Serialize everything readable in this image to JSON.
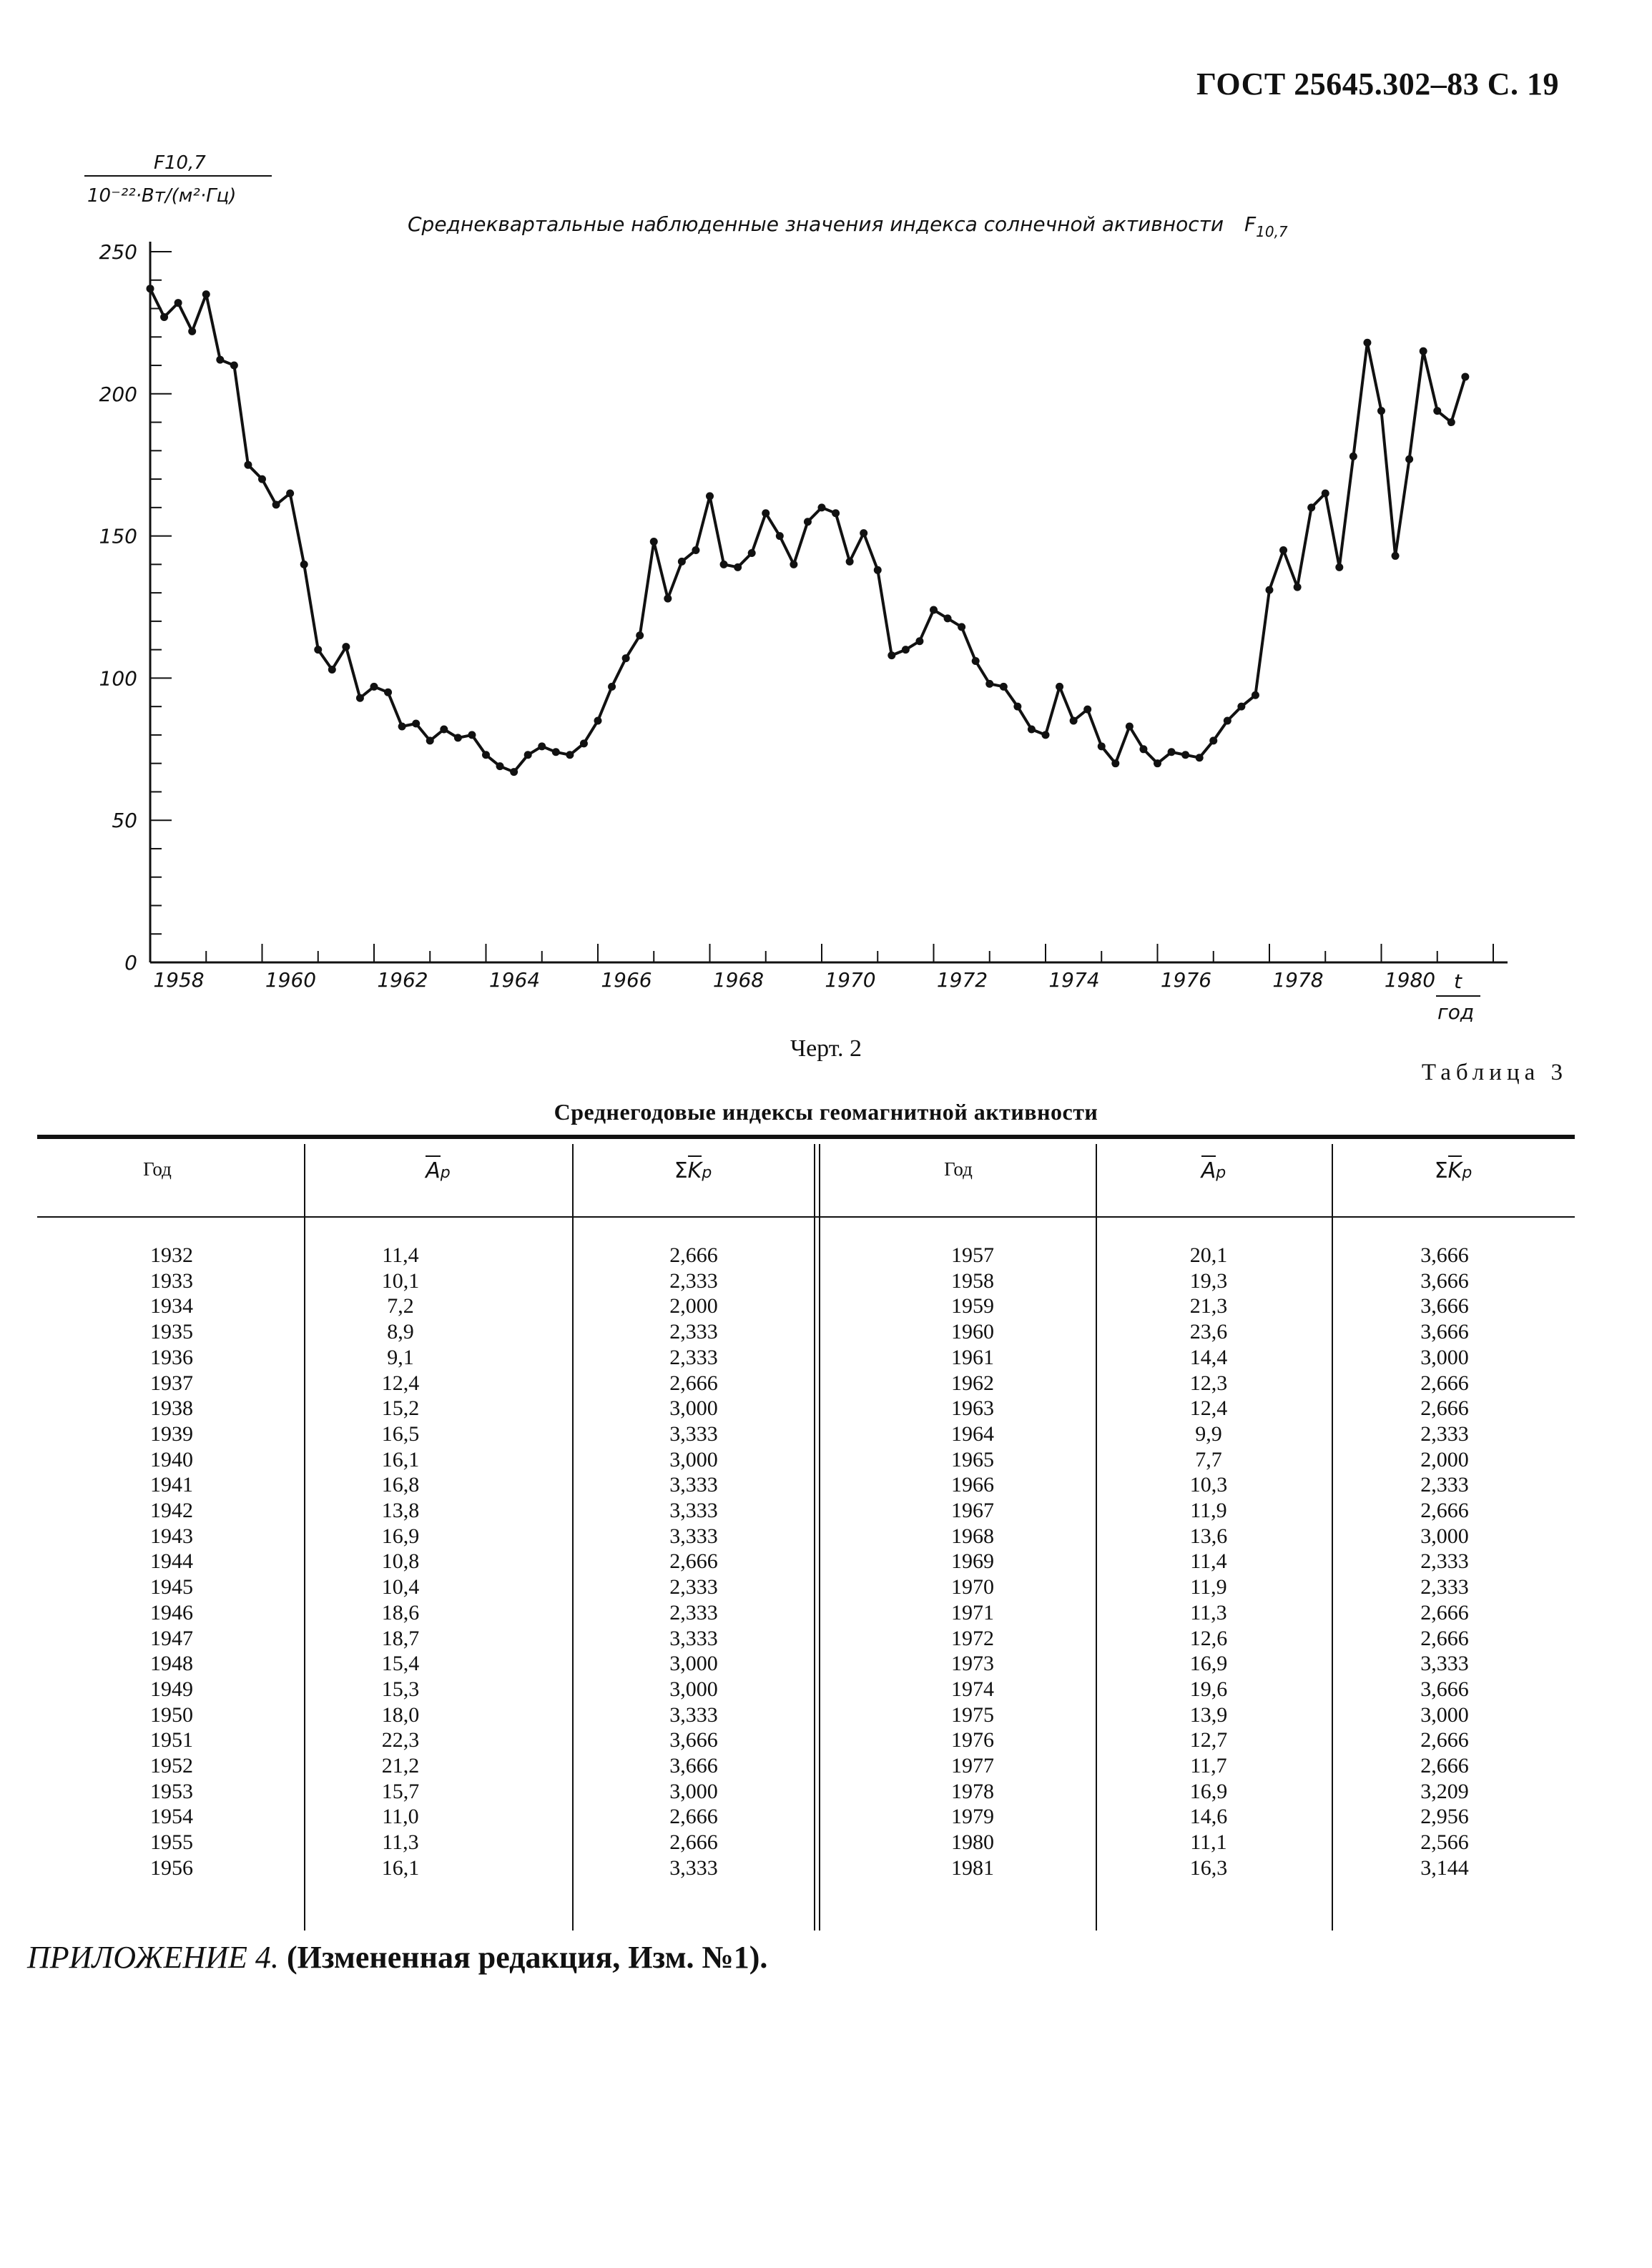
{
  "header": {
    "standard": "ГОСТ 25645.302–83 С. 19"
  },
  "figure": {
    "caption": "Черт. 2",
    "title": "Среднеквартальные наблюденные значения индекса солнечной активности",
    "title_symbol": "F",
    "title_symbol_sub": "10,7"
  },
  "chart_data": {
    "type": "line",
    "title": "Среднеквартальные наблюденные значения индекса солнечной активности F10,7",
    "ylabel_top": "F10,7",
    "ylabel_bottom": "10⁻²²·Вт/(м²·Гц)",
    "xlabel_top": "t",
    "xlabel_bottom": "год",
    "ylim": [
      0,
      250
    ],
    "xlim": [
      1958,
      1982
    ],
    "y_ticks": [
      "0",
      "50",
      "100",
      "150",
      "200",
      "250"
    ],
    "x_ticks": [
      "1958",
      "1960",
      "1962",
      "1964",
      "1966",
      "1968",
      "1970",
      "1972",
      "1974",
      "1976",
      "1978",
      "1980"
    ],
    "series": [
      {
        "values": [
          [
            1958.0,
            237
          ],
          [
            1958.25,
            227
          ],
          [
            1958.5,
            232
          ],
          [
            1958.75,
            222
          ],
          [
            1959.0,
            235
          ],
          [
            1959.25,
            212
          ],
          [
            1959.5,
            210
          ],
          [
            1959.75,
            175
          ],
          [
            1960.0,
            170
          ],
          [
            1960.25,
            161
          ],
          [
            1960.5,
            165
          ],
          [
            1960.75,
            140
          ],
          [
            1961.0,
            110
          ],
          [
            1961.25,
            103
          ],
          [
            1961.5,
            111
          ],
          [
            1961.75,
            93
          ],
          [
            1962.0,
            97
          ],
          [
            1962.25,
            95
          ],
          [
            1962.5,
            83
          ],
          [
            1962.75,
            84
          ],
          [
            1963.0,
            78
          ],
          [
            1963.25,
            82
          ],
          [
            1963.5,
            79
          ],
          [
            1963.75,
            80
          ],
          [
            1964.0,
            73
          ],
          [
            1964.25,
            69
          ],
          [
            1964.5,
            67
          ],
          [
            1964.75,
            73
          ],
          [
            1965.0,
            76
          ],
          [
            1965.25,
            74
          ],
          [
            1965.5,
            73
          ],
          [
            1965.75,
            77
          ],
          [
            1966.0,
            85
          ],
          [
            1966.25,
            97
          ],
          [
            1966.5,
            107
          ],
          [
            1966.75,
            115
          ],
          [
            1967.0,
            148
          ],
          [
            1967.25,
            128
          ],
          [
            1967.5,
            141
          ],
          [
            1967.75,
            145
          ],
          [
            1968.0,
            164
          ],
          [
            1968.25,
            140
          ],
          [
            1968.5,
            139
          ],
          [
            1968.75,
            144
          ],
          [
            1969.0,
            158
          ],
          [
            1969.25,
            150
          ],
          [
            1969.5,
            140
          ],
          [
            1969.75,
            155
          ],
          [
            1970.0,
            160
          ],
          [
            1970.25,
            158
          ],
          [
            1970.5,
            141
          ],
          [
            1970.75,
            151
          ],
          [
            1971.0,
            138
          ],
          [
            1971.25,
            108
          ],
          [
            1971.5,
            110
          ],
          [
            1971.75,
            113
          ],
          [
            1972.0,
            124
          ],
          [
            1972.25,
            121
          ],
          [
            1972.5,
            118
          ],
          [
            1972.75,
            106
          ],
          [
            1973.0,
            98
          ],
          [
            1973.25,
            97
          ],
          [
            1973.5,
            90
          ],
          [
            1973.75,
            82
          ],
          [
            1974.0,
            80
          ],
          [
            1974.25,
            97
          ],
          [
            1974.5,
            85
          ],
          [
            1974.75,
            89
          ],
          [
            1975.0,
            76
          ],
          [
            1975.25,
            70
          ],
          [
            1975.5,
            83
          ],
          [
            1975.75,
            75
          ],
          [
            1976.0,
            70
          ],
          [
            1976.25,
            74
          ],
          [
            1976.5,
            73
          ],
          [
            1976.75,
            72
          ],
          [
            1977.0,
            78
          ],
          [
            1977.25,
            85
          ],
          [
            1977.5,
            90
          ],
          [
            1977.75,
            94
          ],
          [
            1978.0,
            131
          ],
          [
            1978.25,
            145
          ],
          [
            1978.5,
            132
          ],
          [
            1978.75,
            160
          ],
          [
            1979.0,
            165
          ],
          [
            1979.25,
            139
          ],
          [
            1979.5,
            178
          ],
          [
            1979.75,
            218
          ],
          [
            1980.0,
            194
          ],
          [
            1980.25,
            143
          ],
          [
            1980.5,
            177
          ],
          [
            1980.75,
            215
          ],
          [
            1981.0,
            194
          ],
          [
            1981.25,
            190
          ],
          [
            1981.5,
            206
          ]
        ]
      }
    ]
  },
  "table": {
    "number_label": "Таблица 3",
    "title": "Среднегодовые индексы геомагнитной активности",
    "headers": {
      "year": "Год",
      "ap_symbol": "A",
      "ap_sub": "p",
      "kp_prefix": "Σ",
      "kp_symbol": "K",
      "kp_sub": "p"
    },
    "left": {
      "years": [
        "1932",
        "1933",
        "1934",
        "1935",
        "1936",
        "1937",
        "1938",
        "1939",
        "1940",
        "1941",
        "1942",
        "1943",
        "1944",
        "1945",
        "1946",
        "1947",
        "1948",
        "1949",
        "1950",
        "1951",
        "1952",
        "1953",
        "1954",
        "1955",
        "1956"
      ],
      "ap": [
        "11,4",
        "10,1",
        "7,2",
        "8,9",
        "9,1",
        "12,4",
        "15,2",
        "16,5",
        "16,1",
        "16,8",
        "13,8",
        "16,9",
        "10,8",
        "10,4",
        "18,6",
        "18,7",
        "15,4",
        "15,3",
        "18,0",
        "22,3",
        "21,2",
        "15,7",
        "11,0",
        "11,3",
        "16,1"
      ],
      "kp": [
        "2,666",
        "2,333",
        "2,000",
        "2,333",
        "2,333",
        "2,666",
        "3,000",
        "3,333",
        "3,000",
        "3,333",
        "3,333",
        "3,333",
        "2,666",
        "2,333",
        "2,333",
        "3,333",
        "3,000",
        "3,000",
        "3,333",
        "3,666",
        "3,666",
        "3,000",
        "2,666",
        "2,666",
        "3,333"
      ]
    },
    "right": {
      "years": [
        "1957",
        "1958",
        "1959",
        "1960",
        "1961",
        "1962",
        "1963",
        "1964",
        "1965",
        "1966",
        "1967",
        "1968",
        "1969",
        "1970",
        "1971",
        "1972",
        "1973",
        "1974",
        "1975",
        "1976",
        "1977",
        "1978",
        "1979",
        "1980",
        "1981"
      ],
      "ap": [
        "20,1",
        "19,3",
        "21,3",
        "23,6",
        "14,4",
        "12,3",
        "12,4",
        "9,9",
        "7,7",
        "10,3",
        "11,9",
        "13,6",
        "11,4",
        "11,9",
        "11,3",
        "12,6",
        "16,9",
        "19,6",
        "13,9",
        "12,7",
        "11,7",
        "16,9",
        "14,6",
        "11,1",
        "16,3"
      ],
      "kp": [
        "3,666",
        "3,666",
        "3,666",
        "3,666",
        "3,000",
        "2,666",
        "2,666",
        "2,333",
        "2,000",
        "2,333",
        "2,666",
        "3,000",
        "2,333",
        "2,333",
        "2,666",
        "2,666",
        "3,333",
        "3,666",
        "3,000",
        "2,666",
        "2,666",
        "3,209",
        "2,956",
        "2,566",
        "3,144"
      ]
    }
  },
  "appendix": {
    "label": "ПРИЛОЖЕНИЕ 4.",
    "note": "(Измененная редакция, Изм. №1)."
  }
}
